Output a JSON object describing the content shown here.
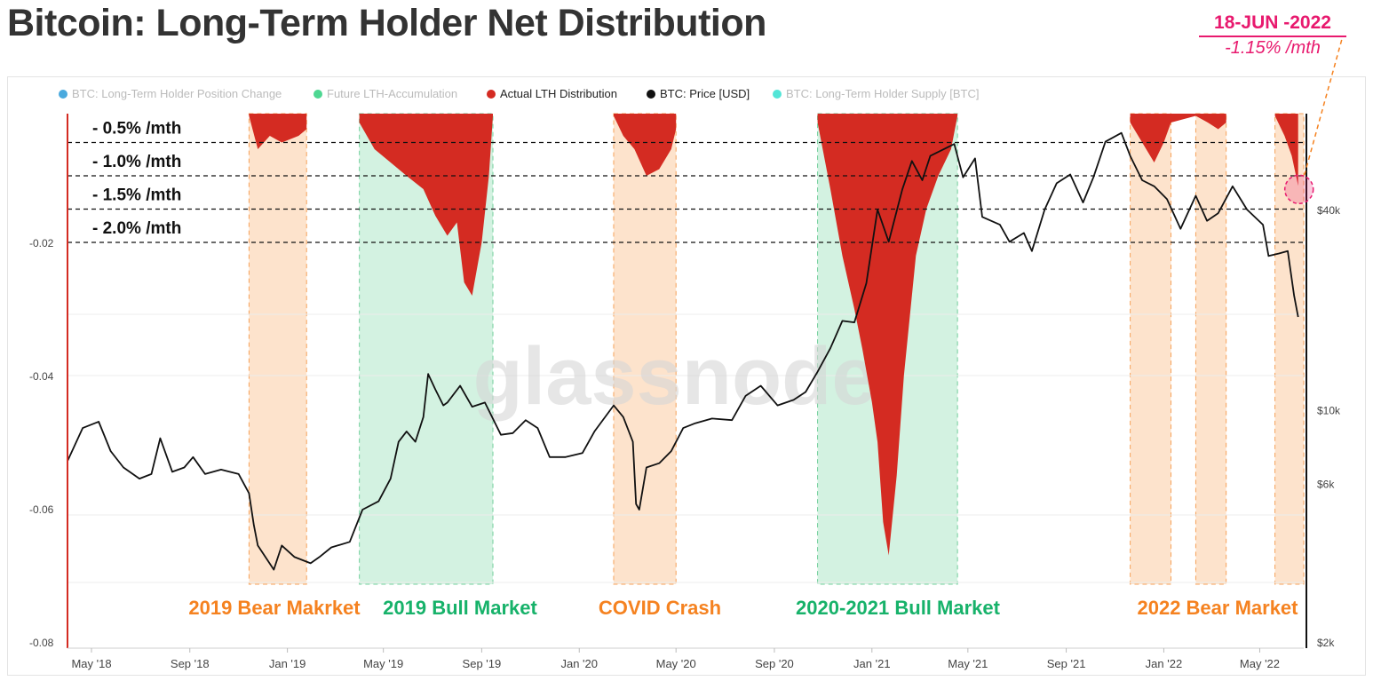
{
  "header": {
    "title": "Bitcoin: Long-Term Holder Net Distribution",
    "callout_date": "18-JUN -2022",
    "callout_value": "-1.15% /mth"
  },
  "legend": [
    {
      "label": "BTC: Long-Term Holder Position Change",
      "color": "#2a9bd8",
      "active": false
    },
    {
      "label": "Future LTH-Accumulation",
      "color": "#2fd07f",
      "active": false
    },
    {
      "label": "Actual LTH Distribution",
      "color": "#d42b22",
      "active": true
    },
    {
      "label": "BTC: Price [USD]",
      "color": "#111111",
      "active": true
    },
    {
      "label": "BTC: Long-Term Holder Supply [BTC]",
      "color": "#35e0d0",
      "active": false
    }
  ],
  "watermark": "glassnode",
  "thresholds": [
    "- 0.5% /mth",
    "- 1.0% /mth",
    "- 1.5% /mth",
    "- 2.0% /mth"
  ],
  "chart_data": {
    "type": "area",
    "title": "Bitcoin: Long-Term Holder Net Distribution",
    "x_ticks": [
      "May '18",
      "Sep '18",
      "Jan '19",
      "May '19",
      "Sep '19",
      "Jan '20",
      "May '20",
      "Sep '20",
      "Jan '21",
      "May '21",
      "Sep '21",
      "Jan '22",
      "May '22"
    ],
    "y_left_ticks": [
      "-0.02",
      "-0.04",
      "-0.06",
      "-0.08"
    ],
    "y_right_ticks": [
      "$40k",
      "$10k",
      "$6k",
      "$2k"
    ],
    "y_right_scale": "log",
    "series": [
      {
        "name": "Actual LTH Distribution",
        "color": "#d42b22",
        "points": [
          [
            "2018-11-14",
            -0.001
          ],
          [
            "2018-11-25",
            -0.006
          ],
          [
            "2018-12-10",
            -0.004
          ],
          [
            "2018-12-25",
            -0.005
          ],
          [
            "2019-01-15",
            -0.004
          ],
          [
            "2019-01-25",
            -0.003
          ],
          [
            "2019-04-01",
            -0.002
          ],
          [
            "2019-04-20",
            -0.006
          ],
          [
            "2019-05-10",
            -0.008
          ],
          [
            "2019-05-30",
            -0.01
          ],
          [
            "2019-06-20",
            -0.012
          ],
          [
            "2019-07-05",
            -0.016
          ],
          [
            "2019-07-20",
            -0.019
          ],
          [
            "2019-08-01",
            -0.017
          ],
          [
            "2019-08-10",
            -0.026
          ],
          [
            "2019-08-20",
            -0.028
          ],
          [
            "2019-09-01",
            -0.02
          ],
          [
            "2019-09-10",
            -0.01
          ],
          [
            "2019-09-15",
            -0.001
          ],
          [
            "2020-02-13",
            -0.001
          ],
          [
            "2020-02-25",
            -0.004
          ],
          [
            "2020-03-10",
            -0.006
          ],
          [
            "2020-03-25",
            -0.01
          ],
          [
            "2020-04-10",
            -0.009
          ],
          [
            "2020-04-25",
            -0.006
          ],
          [
            "2020-05-01",
            -0.003
          ],
          [
            "2020-10-25",
            -0.002
          ],
          [
            "2020-11-10",
            -0.012
          ],
          [
            "2020-11-25",
            -0.022
          ],
          [
            "2020-12-10",
            -0.03
          ],
          [
            "2020-12-20",
            -0.036
          ],
          [
            "2021-01-01",
            -0.044
          ],
          [
            "2021-01-08",
            -0.05
          ],
          [
            "2021-01-15",
            -0.062
          ],
          [
            "2021-01-22",
            -0.067
          ],
          [
            "2021-02-01",
            -0.055
          ],
          [
            "2021-02-10",
            -0.04
          ],
          [
            "2021-02-25",
            -0.022
          ],
          [
            "2021-03-10",
            -0.015
          ],
          [
            "2021-03-25",
            -0.01
          ],
          [
            "2021-04-10",
            -0.006
          ],
          [
            "2021-04-18",
            -0.001
          ],
          [
            "2021-11-20",
            -0.002
          ],
          [
            "2021-12-05",
            -0.005
          ],
          [
            "2021-12-20",
            -0.008
          ],
          [
            "2022-01-01",
            -0.005
          ],
          [
            "2022-01-10",
            -0.002
          ],
          [
            "2022-02-10",
            -0.001
          ],
          [
            "2022-02-25",
            -0.002
          ],
          [
            "2022-03-10",
            -0.003
          ],
          [
            "2022-03-20",
            -0.002
          ],
          [
            "2022-05-20",
            -0.001
          ],
          [
            "2022-06-01",
            -0.004
          ],
          [
            "2022-06-10",
            -0.007
          ],
          [
            "2022-06-18",
            -0.0115
          ]
        ]
      },
      {
        "name": "BTC: Price [USD]",
        "color": "#111111",
        "points": [
          [
            "2018-04-01",
            7000
          ],
          [
            "2018-04-20",
            8800
          ],
          [
            "2018-05-10",
            9200
          ],
          [
            "2018-05-25",
            7500
          ],
          [
            "2018-06-10",
            6700
          ],
          [
            "2018-06-30",
            6200
          ],
          [
            "2018-07-15",
            6400
          ],
          [
            "2018-07-26",
            8200
          ],
          [
            "2018-08-10",
            6500
          ],
          [
            "2018-08-25",
            6700
          ],
          [
            "2018-09-05",
            7200
          ],
          [
            "2018-09-20",
            6400
          ],
          [
            "2018-10-10",
            6600
          ],
          [
            "2018-11-01",
            6400
          ],
          [
            "2018-11-14",
            5600
          ],
          [
            "2018-11-20",
            4500
          ],
          [
            "2018-11-25",
            3900
          ],
          [
            "2018-12-15",
            3300
          ],
          [
            "2018-12-25",
            3900
          ],
          [
            "2019-01-10",
            3600
          ],
          [
            "2019-01-30",
            3450
          ],
          [
            "2019-02-10",
            3600
          ],
          [
            "2019-02-25",
            3850
          ],
          [
            "2019-03-20",
            4000
          ],
          [
            "2019-04-05",
            5000
          ],
          [
            "2019-04-25",
            5300
          ],
          [
            "2019-05-10",
            6200
          ],
          [
            "2019-05-20",
            8000
          ],
          [
            "2019-05-30",
            8600
          ],
          [
            "2019-06-10",
            8000
          ],
          [
            "2019-06-20",
            9500
          ],
          [
            "2019-06-26",
            12800
          ],
          [
            "2019-07-05",
            11500
          ],
          [
            "2019-07-15",
            10300
          ],
          [
            "2019-07-20",
            10500
          ],
          [
            "2019-08-05",
            11800
          ],
          [
            "2019-08-20",
            10200
          ],
          [
            "2019-09-05",
            10500
          ],
          [
            "2019-09-25",
            8400
          ],
          [
            "2019-10-10",
            8500
          ],
          [
            "2019-10-26",
            9300
          ],
          [
            "2019-11-10",
            8800
          ],
          [
            "2019-11-25",
            7200
          ],
          [
            "2019-12-15",
            7200
          ],
          [
            "2020-01-05",
            7400
          ],
          [
            "2020-01-20",
            8600
          ],
          [
            "2020-02-13",
            10300
          ],
          [
            "2020-02-25",
            9500
          ],
          [
            "2020-03-08",
            8000
          ],
          [
            "2020-03-12",
            5200
          ],
          [
            "2020-03-16",
            5000
          ],
          [
            "2020-03-25",
            6700
          ],
          [
            "2020-04-10",
            6900
          ],
          [
            "2020-04-25",
            7500
          ],
          [
            "2020-05-10",
            8800
          ],
          [
            "2020-05-25",
            9100
          ],
          [
            "2020-06-15",
            9400
          ],
          [
            "2020-07-10",
            9300
          ],
          [
            "2020-07-27",
            11000
          ],
          [
            "2020-08-15",
            11800
          ],
          [
            "2020-09-05",
            10300
          ],
          [
            "2020-09-25",
            10700
          ],
          [
            "2020-10-10",
            11300
          ],
          [
            "2020-10-25",
            13000
          ],
          [
            "2020-11-10",
            15300
          ],
          [
            "2020-11-25",
            18500
          ],
          [
            "2020-12-10",
            18300
          ],
          [
            "2020-12-25",
            24000
          ],
          [
            "2021-01-08",
            40000
          ],
          [
            "2021-01-22",
            32000
          ],
          [
            "2021-02-08",
            46000
          ],
          [
            "2021-02-20",
            56000
          ],
          [
            "2021-03-05",
            49000
          ],
          [
            "2021-03-15",
            58000
          ],
          [
            "2021-04-14",
            63000
          ],
          [
            "2021-04-25",
            50000
          ],
          [
            "2021-05-10",
            57000
          ],
          [
            "2021-05-19",
            38000
          ],
          [
            "2021-06-10",
            36000
          ],
          [
            "2021-06-22",
            32000
          ],
          [
            "2021-07-10",
            34000
          ],
          [
            "2021-07-20",
            30000
          ],
          [
            "2021-08-05",
            40000
          ],
          [
            "2021-08-20",
            48000
          ],
          [
            "2021-09-06",
            51000
          ],
          [
            "2021-09-22",
            42000
          ],
          [
            "2021-10-05",
            50000
          ],
          [
            "2021-10-20",
            64000
          ],
          [
            "2021-11-09",
            68000
          ],
          [
            "2021-11-20",
            58000
          ],
          [
            "2021-12-05",
            49000
          ],
          [
            "2021-12-20",
            47000
          ],
          [
            "2022-01-05",
            43000
          ],
          [
            "2022-01-22",
            35000
          ],
          [
            "2022-02-10",
            44000
          ],
          [
            "2022-02-24",
            37000
          ],
          [
            "2022-03-10",
            39000
          ],
          [
            "2022-03-28",
            47000
          ],
          [
            "2022-04-15",
            40000
          ],
          [
            "2022-05-05",
            36000
          ],
          [
            "2022-05-12",
            29000
          ],
          [
            "2022-05-25",
            29500
          ],
          [
            "2022-06-05",
            30000
          ],
          [
            "2022-06-13",
            22000
          ],
          [
            "2022-06-18",
            19000
          ]
        ]
      }
    ],
    "regimes": [
      {
        "label": "2019 Bear Makrket",
        "start": "2018-11-14",
        "end": "2019-01-25",
        "kind": "bear"
      },
      {
        "label": "2019 Bull Market",
        "start": "2019-04-01",
        "end": "2019-09-15",
        "kind": "bull"
      },
      {
        "label": "COVID Crash",
        "start": "2020-02-13",
        "end": "2020-05-01",
        "kind": "bear"
      },
      {
        "label": "2020-2021 Bull Market",
        "start": "2020-10-25",
        "end": "2021-04-18",
        "kind": "bull"
      },
      {
        "label": "2022 Bear Market",
        "start": "2021-11-20",
        "end": "2022-01-10",
        "kind": "bear"
      },
      {
        "label": "",
        "start": "2022-02-10",
        "end": "2022-03-20",
        "kind": "bear"
      },
      {
        "label": "",
        "start": "2022-05-20",
        "end": "2022-06-25",
        "kind": "bear"
      }
    ],
    "colors": {
      "bear_fill": "#fde3cc",
      "bear_edge": "#f6a25a",
      "bull_fill": "#d3f2e1",
      "bull_edge": "#73cf9c",
      "bear_text": "#f58220",
      "bull_text": "#17b26a",
      "accent": "#e8196e"
    }
  }
}
